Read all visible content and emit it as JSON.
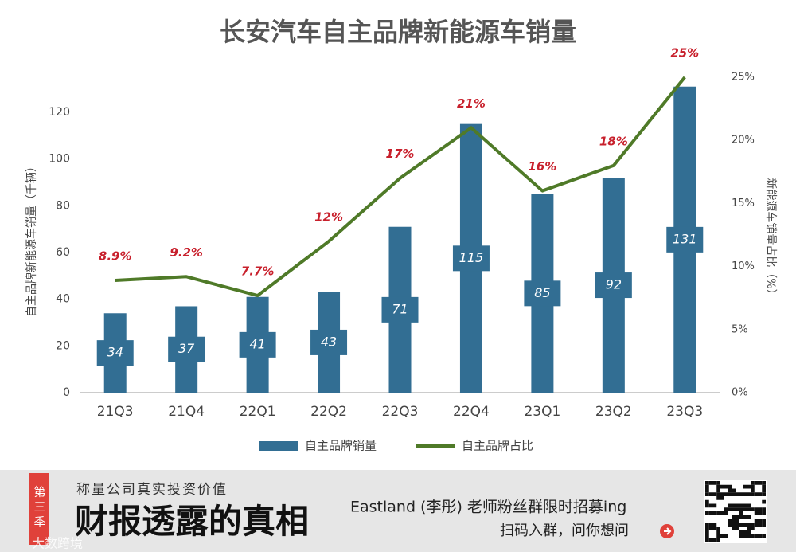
{
  "chart_data": {
    "type": "bar",
    "title": "长安汽车自主品牌新能源车销量",
    "y_label": "自主品牌新能源车销量（千辆）",
    "y2_label": "新能源车销量占比（%）",
    "categories": [
      "21Q3",
      "21Q4",
      "22Q1",
      "22Q2",
      "22Q3",
      "22Q4",
      "23Q1",
      "23Q2",
      "23Q3"
    ],
    "series": [
      {
        "name": "自主品牌销量",
        "type": "bar",
        "color": "#326e93",
        "values": [
          34,
          37,
          41,
          43,
          71,
          115,
          85,
          92,
          131
        ]
      },
      {
        "name": "自主品牌占比",
        "type": "line",
        "axis": "y2",
        "color": "#4f7a28",
        "values": [
          8.9,
          9.2,
          7.7,
          12,
          17,
          21,
          16,
          18,
          25
        ],
        "value_labels": [
          "8.9%",
          "9.2%",
          "7.7%",
          "12%",
          "17%",
          "21%",
          "16%",
          "18%",
          "25%"
        ]
      }
    ],
    "ylim": [
      0,
      135
    ],
    "yticks": [
      0,
      20,
      40,
      60,
      80,
      100,
      120
    ],
    "y2lim": [
      0,
      25
    ],
    "y2ticks": [
      {
        "value": 0,
        "label": "0%"
      },
      {
        "value": 5,
        "label": "5%"
      },
      {
        "value": 10,
        "label": "10%"
      },
      {
        "value": 15,
        "label": "15%"
      },
      {
        "value": 20,
        "label": "20%"
      },
      {
        "value": 25,
        "label": "25%"
      }
    ],
    "legend": "bottom"
  },
  "footer": {
    "tag": "第三季",
    "subtitle": "称量公司真实投资价值",
    "title": "财报透露的真相",
    "promo": "Eastland (李彤) 老师粉丝群限时招募ing",
    "cta": "扫码入群，问你想问",
    "watermark": "大数跨境"
  }
}
